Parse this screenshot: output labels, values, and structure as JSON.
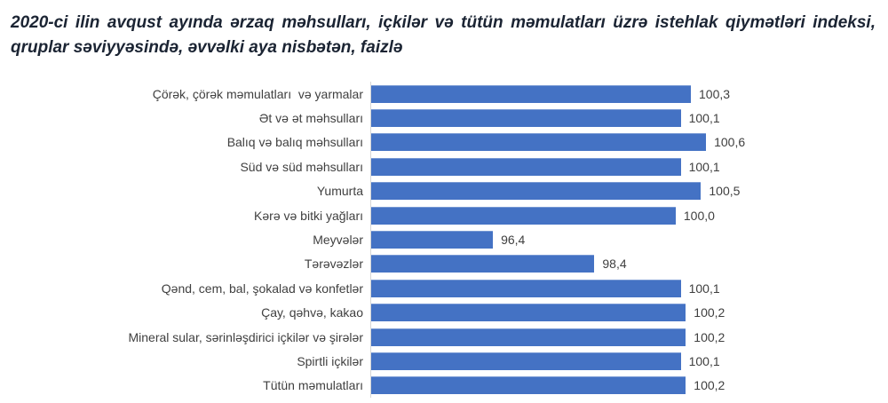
{
  "title": "2020-ci ilin avqust ayında ərzaq məhsulları, içkilər və tütün məmulatları üzrə istehlak qiymətləri indeksi, qruplar səviyyəsində, əvvəlki aya nisbətən, faizlə",
  "chart_data": {
    "type": "bar",
    "orientation": "horizontal",
    "title": "2020-ci ilin avqust ayında ərzaq məhsulları, içkilər və tütün məmulatları üzrə istehlak qiymətləri indeksi, qruplar səviyyəsində, əvvəlki aya nisbətən, faizlə",
    "categories": [
      "Çörək, çörək məmulatları  və yarmalar",
      "Ət və ət məhsulları",
      "Balıq və balıq məhsulları",
      "Süd və süd məhsulları",
      "Yumurta",
      "Kərə və bitki yağları",
      "Meyvələr",
      "Tərəvəzlər",
      "Qənd, cem, bal, şokalad və konfetlər",
      "Çay, qəhvə, kakao",
      "Mineral sular, sərinləşdirici içkilər və şirələr",
      "Spirtli içkilər",
      "Tütün məmulatları"
    ],
    "values": [
      100.3,
      100.1,
      100.6,
      100.1,
      100.5,
      100.0,
      96.4,
      98.4,
      100.1,
      100.2,
      100.2,
      100.1,
      100.2
    ],
    "value_labels": [
      "100,3",
      "100,1",
      "100,6",
      "100,1",
      "100,5",
      "100,0",
      "96,4",
      "98,4",
      "100,1",
      "100,2",
      "100,2",
      "100,1",
      "100,2"
    ],
    "xlabel": "",
    "ylabel": "",
    "xlim": [
      94,
      101
    ],
    "grid": false,
    "legend": false,
    "bar_color": "#4472C4",
    "axis_line_color": "#D6D6D6",
    "label_color": "#404040"
  }
}
